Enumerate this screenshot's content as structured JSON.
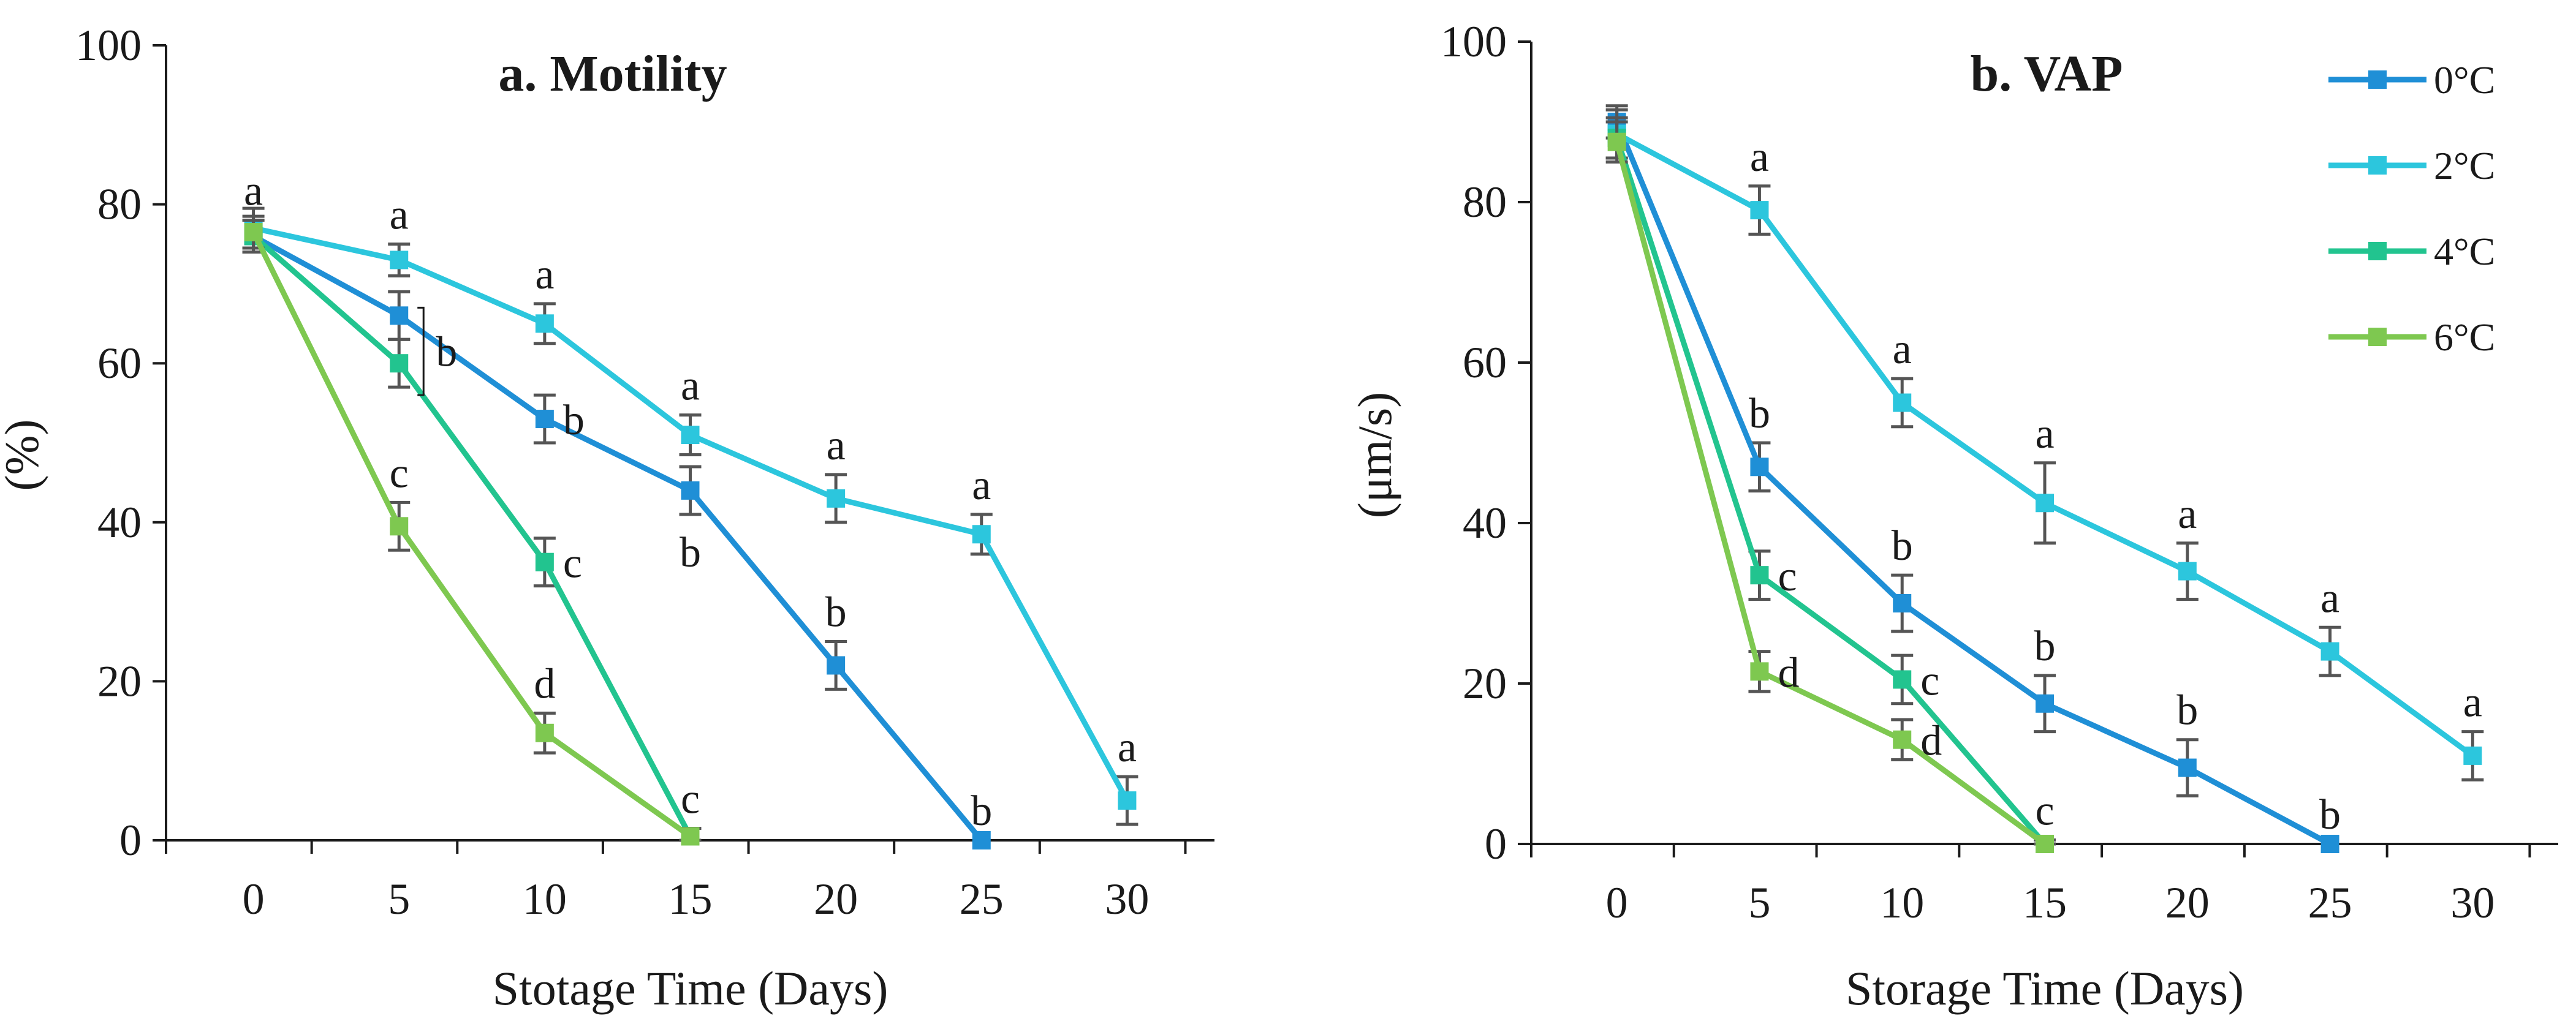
{
  "chart_data": [
    {
      "type": "line",
      "title": "a. Motility",
      "xlabel": "Stotage Time (Days)",
      "ylabel": "(%)",
      "x": [
        0,
        5,
        10,
        15,
        20,
        25,
        30
      ],
      "xticks": [
        "0",
        "5",
        "10",
        "15",
        "20",
        "25",
        "30"
      ],
      "xlim": [
        -3,
        33
      ],
      "ylim": [
        0,
        100
      ],
      "yticks": [
        "0",
        "20",
        "40",
        "60",
        "80",
        "100"
      ],
      "grid": false,
      "series": [
        {
          "name": "0°C",
          "color": "#1f8fd6",
          "x": [
            0,
            5,
            10,
            15,
            20,
            25
          ],
          "values": [
            76,
            66,
            53,
            44,
            22,
            0
          ],
          "errors": [
            2,
            3,
            3,
            3,
            3,
            0
          ],
          "labels": [
            "a",
            "",
            "b",
            "b",
            "b",
            "b"
          ]
        },
        {
          "name": "2°C",
          "color": "#2cc6dd",
          "x": [
            0,
            5,
            10,
            15,
            20,
            25,
            30
          ],
          "values": [
            77,
            73,
            65,
            51,
            43,
            38.5,
            5
          ],
          "errors": [
            2.5,
            2,
            2.5,
            2.5,
            3,
            2.5,
            3
          ],
          "labels": [
            "",
            "a",
            "a",
            "a",
            "a",
            "a",
            "a"
          ]
        },
        {
          "name": "4°C",
          "color": "#22c48f",
          "x": [
            0,
            5,
            10,
            15
          ],
          "values": [
            76,
            60,
            35,
            0.5
          ],
          "errors": [
            2,
            3,
            3,
            1
          ],
          "labels": [
            "",
            "",
            "c",
            "c"
          ]
        },
        {
          "name": "6°C",
          "color": "#7ec850",
          "x": [
            0,
            5,
            10,
            15
          ],
          "values": [
            76.5,
            39.5,
            13.5,
            0.5
          ],
          "errors": [
            2,
            3,
            2.5,
            1
          ],
          "labels": [
            "",
            "c",
            "d",
            ""
          ]
        }
      ],
      "annotations": [
        {
          "text": "b",
          "note": "bracket grouping 0°C and 4°C at day 5"
        }
      ]
    },
    {
      "type": "line",
      "title": "b. VAP",
      "xlabel": "Storage Time (Days)",
      "ylabel": "(μm/s)",
      "x": [
        0,
        5,
        10,
        15,
        20,
        25,
        30
      ],
      "xticks": [
        "0",
        "5",
        "10",
        "15",
        "20",
        "25",
        "30"
      ],
      "xlim": [
        -3,
        33
      ],
      "ylim": [
        0,
        100
      ],
      "yticks": [
        "0",
        "20",
        "40",
        "60",
        "80",
        "100"
      ],
      "grid": false,
      "legend": "top-right",
      "series": [
        {
          "name": "0°C",
          "color": "#1f8fd6",
          "x": [
            0,
            5,
            10,
            15,
            20,
            25
          ],
          "values": [
            90,
            47,
            30,
            17.5,
            9.5,
            0
          ],
          "errors": [
            2,
            3,
            3.5,
            3.5,
            3.5,
            0
          ],
          "labels": [
            "",
            "b",
            "b",
            "b",
            "b",
            "b"
          ]
        },
        {
          "name": "2°C",
          "color": "#2cc6dd",
          "x": [
            0,
            5,
            10,
            15,
            20,
            25,
            30
          ],
          "values": [
            88.5,
            79,
            55,
            42.5,
            34,
            24,
            11
          ],
          "errors": [
            3,
            3,
            3,
            5,
            3.5,
            3,
            3
          ],
          "labels": [
            "",
            "a",
            "a",
            "a",
            "a",
            "a",
            "a"
          ]
        },
        {
          "name": "4°C",
          "color": "#22c48f",
          "x": [
            0,
            5,
            10,
            15
          ],
          "values": [
            88,
            33.5,
            20.5,
            0
          ],
          "errors": [
            2.5,
            3,
            3,
            0.5
          ],
          "labels": [
            "",
            "c",
            "c",
            "c"
          ]
        },
        {
          "name": "6°C",
          "color": "#7ec850",
          "x": [
            0,
            5,
            10,
            15
          ],
          "values": [
            87.5,
            21.5,
            13,
            0
          ],
          "errors": [
            2.5,
            2.5,
            2.5,
            0.5
          ],
          "labels": [
            "",
            "d",
            "d",
            ""
          ]
        }
      ]
    }
  ]
}
